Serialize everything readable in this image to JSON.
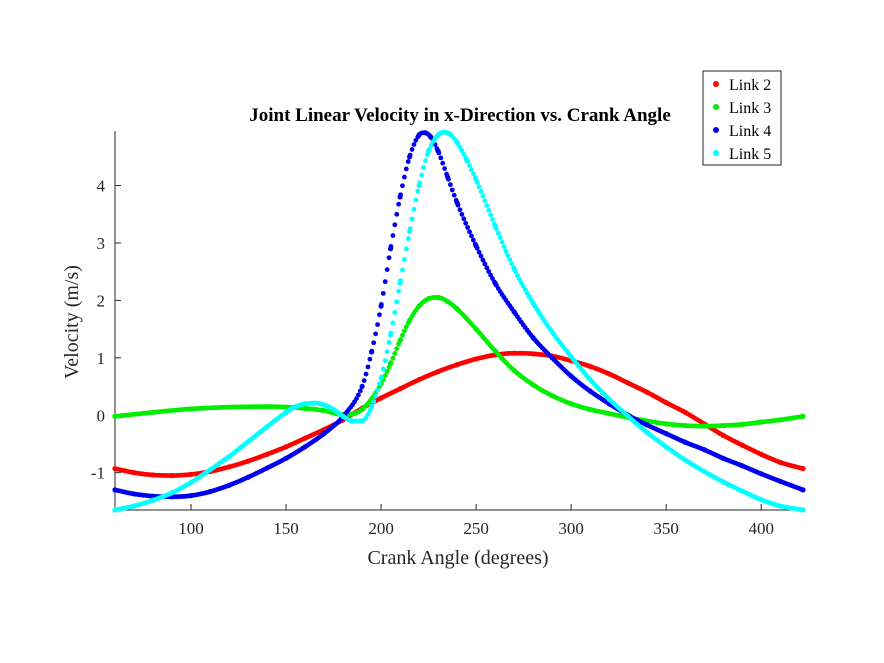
{
  "chart_data": {
    "type": "scatter",
    "title": "Joint Linear Velocity in x-Direction vs. Crank Angle",
    "xlabel": "Crank Angle (degrees)",
    "ylabel": "Velocity (m/s)",
    "xlim": [
      60,
      422
    ],
    "ylim": [
      -1.65,
      4.95
    ],
    "xticks": [
      100,
      150,
      200,
      250,
      300,
      350,
      400
    ],
    "yticks": [
      -1,
      0,
      1,
      2,
      3,
      4
    ],
    "grid": false,
    "legend_position": "top-right",
    "series": [
      {
        "name": "Link 2",
        "color": "#ff0000",
        "x": [
          60,
          70,
          80,
          90,
          100,
          110,
          120,
          130,
          140,
          150,
          160,
          170,
          180,
          190,
          200,
          210,
          220,
          230,
          240,
          250,
          260,
          270,
          280,
          290,
          300,
          310,
          320,
          330,
          340,
          350,
          360,
          370,
          380,
          390,
          400,
          410,
          422
        ],
        "y": [
          -0.93,
          -1.0,
          -1.04,
          -1.05,
          -1.03,
          -0.98,
          -0.9,
          -0.8,
          -0.68,
          -0.55,
          -0.4,
          -0.25,
          -0.08,
          0.12,
          0.3,
          0.46,
          0.62,
          0.76,
          0.88,
          0.98,
          1.05,
          1.08,
          1.07,
          1.03,
          0.95,
          0.85,
          0.72,
          0.56,
          0.4,
          0.22,
          0.05,
          -0.15,
          -0.35,
          -0.52,
          -0.68,
          -0.82,
          -0.93
        ]
      },
      {
        "name": "Link 3",
        "color": "#00ee00",
        "x": [
          60,
          80,
          100,
          120,
          140,
          160,
          170,
          180,
          190,
          200,
          205,
          210,
          215,
          220,
          225,
          230,
          235,
          240,
          250,
          260,
          270,
          280,
          290,
          300,
          310,
          320,
          330,
          340,
          350,
          360,
          370,
          380,
          390,
          400,
          410,
          422
        ],
        "y": [
          -0.02,
          0.05,
          0.11,
          0.14,
          0.15,
          0.12,
          0.08,
          0.01,
          0.1,
          0.55,
          0.9,
          1.3,
          1.65,
          1.9,
          2.03,
          2.05,
          1.98,
          1.85,
          1.5,
          1.12,
          0.78,
          0.53,
          0.34,
          0.2,
          0.1,
          0.03,
          -0.04,
          -0.1,
          -0.15,
          -0.18,
          -0.19,
          -0.18,
          -0.16,
          -0.12,
          -0.08,
          -0.02
        ]
      },
      {
        "name": "Link 4",
        "color": "#0000ee",
        "x": [
          60,
          70,
          80,
          90,
          100,
          110,
          120,
          130,
          140,
          150,
          160,
          170,
          180,
          190,
          195,
          200,
          205,
          210,
          215,
          220,
          223,
          226,
          230,
          235,
          240,
          250,
          260,
          270,
          280,
          290,
          300,
          310,
          320,
          330,
          340,
          350,
          360,
          370,
          380,
          390,
          400,
          410,
          422
        ],
        "y": [
          -1.3,
          -1.37,
          -1.41,
          -1.42,
          -1.4,
          -1.33,
          -1.22,
          -1.08,
          -0.92,
          -0.75,
          -0.55,
          -0.32,
          -0.02,
          0.5,
          1.1,
          1.9,
          2.9,
          3.8,
          4.5,
          4.88,
          4.92,
          4.85,
          4.6,
          4.15,
          3.7,
          2.95,
          2.3,
          1.8,
          1.35,
          1.0,
          0.68,
          0.42,
          0.2,
          0.0,
          -0.17,
          -0.32,
          -0.47,
          -0.6,
          -0.75,
          -0.88,
          -1.02,
          -1.15,
          -1.3
        ]
      },
      {
        "name": "Link 5",
        "color": "#00ffff",
        "x": [
          60,
          70,
          80,
          90,
          100,
          110,
          120,
          130,
          140,
          150,
          155,
          160,
          165,
          170,
          175,
          180,
          185,
          190,
          195,
          200,
          205,
          210,
          215,
          220,
          225,
          230,
          233,
          236,
          240,
          245,
          250,
          260,
          270,
          280,
          290,
          300,
          310,
          320,
          330,
          340,
          350,
          360,
          370,
          380,
          390,
          400,
          410,
          422
        ],
        "y": [
          -1.65,
          -1.58,
          -1.48,
          -1.35,
          -1.17,
          -0.95,
          -0.72,
          -0.46,
          -0.2,
          0.05,
          0.15,
          0.2,
          0.21,
          0.18,
          0.1,
          -0.02,
          -0.1,
          -0.1,
          0.15,
          0.65,
          1.4,
          2.3,
          3.2,
          4.0,
          4.6,
          4.88,
          4.93,
          4.9,
          4.75,
          4.45,
          4.1,
          3.3,
          2.55,
          1.95,
          1.45,
          1.02,
          0.62,
          0.28,
          -0.02,
          -0.3,
          -0.55,
          -0.78,
          -0.98,
          -1.16,
          -1.32,
          -1.47,
          -1.58,
          -1.65
        ]
      }
    ]
  }
}
